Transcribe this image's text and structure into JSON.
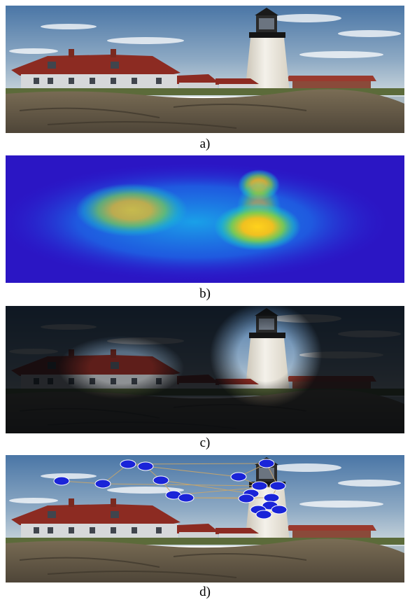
{
  "figure": {
    "panels": [
      {
        "caption": "a)"
      },
      {
        "caption": "b)"
      },
      {
        "caption": "c)"
      },
      {
        "caption": "d)"
      }
    ]
  }
}
